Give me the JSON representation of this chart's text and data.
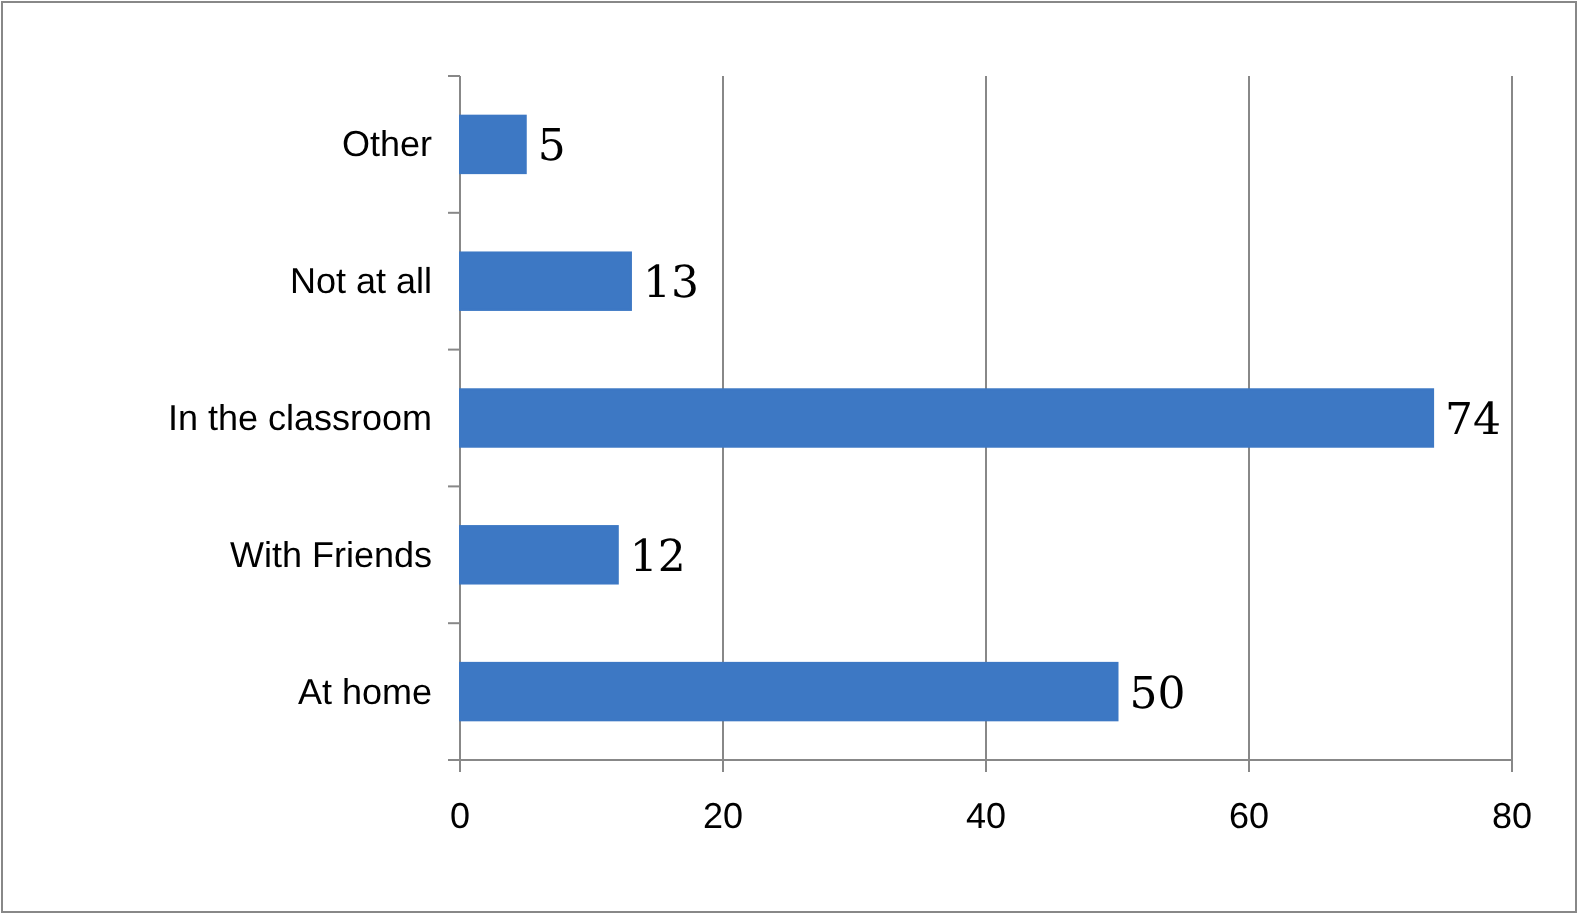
{
  "chart_data": {
    "type": "bar",
    "orientation": "horizontal",
    "categories": [
      "Other",
      "Not at all",
      "In the classroom",
      "With Friends",
      "At home"
    ],
    "values": [
      5,
      13,
      74,
      12,
      50
    ],
    "color": "#3d78c4",
    "xlim": [
      0,
      80
    ],
    "xticks": [
      0,
      20,
      40,
      60,
      80
    ],
    "grid": "x",
    "data_labels": true
  }
}
